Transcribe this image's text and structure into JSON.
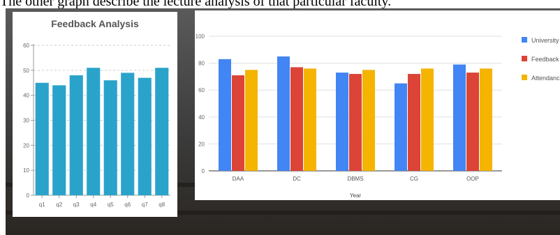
{
  "page": {
    "caption": "The other graph describe the lecture analysis of that particular faculty."
  },
  "colors": {
    "left_bars": "#2aa3cb",
    "university": "#4285f4",
    "feedback": "#db4437",
    "attendance": "#f4b400"
  },
  "chart_data": [
    {
      "type": "bar",
      "title": "Feedback Analysis",
      "xlabel": "",
      "ylabel": "",
      "categories": [
        "q1",
        "q2",
        "q3",
        "q4",
        "q5",
        "q6",
        "q7",
        "q8"
      ],
      "values": [
        45,
        44,
        48,
        51,
        46,
        49,
        47,
        51
      ],
      "ylim": [
        0,
        60
      ],
      "yticks": [
        0,
        10,
        20,
        30,
        40,
        50,
        60
      ],
      "grid": true
    },
    {
      "type": "bar",
      "title": "",
      "xlabel": "Year",
      "ylabel": "",
      "categories": [
        "DAA",
        "DC",
        "DBMS",
        "CG",
        "OOP"
      ],
      "series": [
        {
          "name": "University",
          "values": [
            83,
            85,
            73,
            65,
            79
          ]
        },
        {
          "name": "Feedback",
          "values": [
            71,
            77,
            72,
            72,
            73
          ]
        },
        {
          "name": "Attendance",
          "values": [
            75,
            76,
            75,
            76,
            76
          ]
        }
      ],
      "ylim": [
        0,
        100
      ],
      "yticks": [
        0,
        20,
        40,
        60,
        80,
        100
      ],
      "grid": true,
      "legend": "right"
    }
  ]
}
